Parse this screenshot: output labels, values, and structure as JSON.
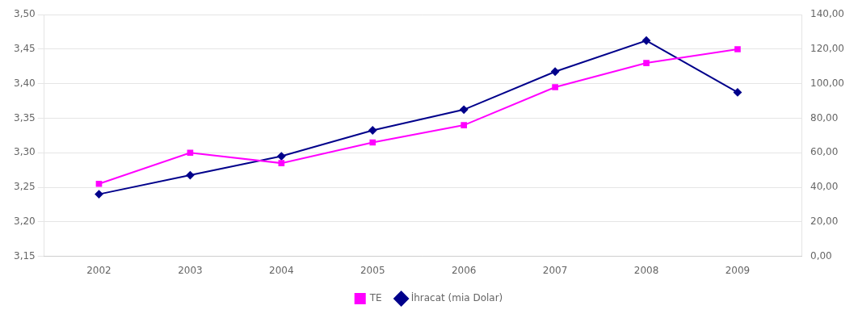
{
  "chart_data": {
    "type": "line",
    "x": [
      2002,
      2003,
      2004,
      2005,
      2006,
      2007,
      2008,
      2009
    ],
    "xlim": [
      2001.4,
      2009.7
    ],
    "xticks": [
      2002,
      2003,
      2004,
      2005,
      2006,
      2007,
      2008,
      2009
    ],
    "series": [
      {
        "name": "TE",
        "color": "#FF00FF",
        "marker": "square",
        "values": [
          3.255,
          3.3,
          3.285,
          3.315,
          3.34,
          3.395,
          3.43,
          3.45
        ]
      },
      {
        "name": "İhracat (mia Dolar)",
        "color": "#00008B",
        "marker": "diamond",
        "axis": "y2",
        "values": [
          36.0,
          47.0,
          58.0,
          73.0,
          85.0,
          107.0,
          125.0,
          95.0
        ]
      }
    ],
    "ylim": [
      3.15,
      3.5
    ],
    "yticks": [
      {
        "value": 3.15,
        "label": "3,15"
      },
      {
        "value": 3.2,
        "label": "3,20"
      },
      {
        "value": 3.25,
        "label": "3,25"
      },
      {
        "value": 3.3,
        "label": "3,30"
      },
      {
        "value": 3.35,
        "label": "3,35"
      },
      {
        "value": 3.4,
        "label": "3,40"
      },
      {
        "value": 3.45,
        "label": "3,45"
      },
      {
        "value": 3.5,
        "label": "3,50"
      }
    ],
    "y2lim": [
      0.0,
      140.0
    ],
    "y2ticks": [
      {
        "value": 0.0,
        "label": "0,00"
      },
      {
        "value": 20.0,
        "label": "20,00"
      },
      {
        "value": 40.0,
        "label": "40,00"
      },
      {
        "value": 60.0,
        "label": "60,00"
      },
      {
        "value": 80.0,
        "label": "80,00"
      },
      {
        "value": 100.0,
        "label": "100,00"
      },
      {
        "value": 120.0,
        "label": "120,00"
      },
      {
        "value": 140.0,
        "label": "140,00"
      }
    ],
    "grid": true,
    "legend": "bottom"
  }
}
